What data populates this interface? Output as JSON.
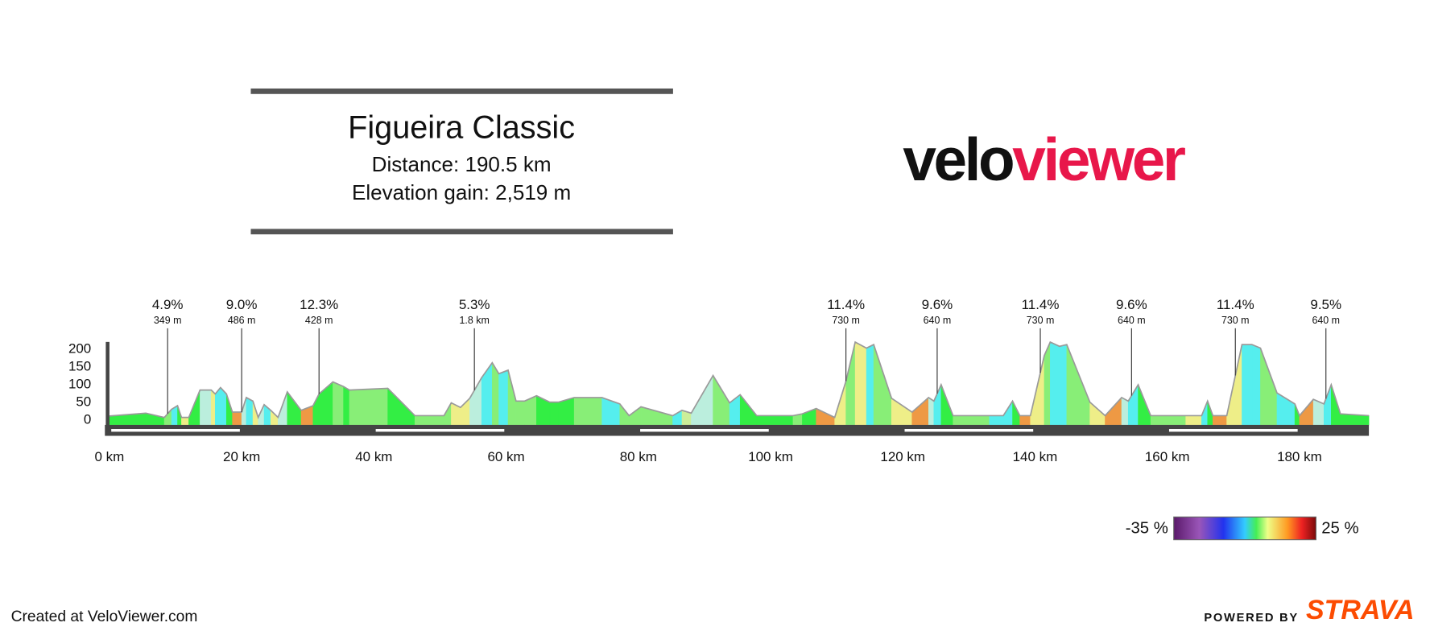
{
  "header": {
    "title": "Figueira Classic",
    "distance": "Distance: 190.5 km",
    "elevation_gain": "Elevation gain: 2,519 m"
  },
  "logo": {
    "part1": "velo",
    "part2": "viewer"
  },
  "chart_data": {
    "type": "area",
    "x": [
      0,
      5.5,
      8.3,
      9.4,
      10.3,
      10.9,
      12,
      13.7,
      15.4,
      16,
      16.8,
      17.7,
      18.6,
      20,
      20.7,
      21.7,
      22.5,
      23.4,
      24.4,
      25.5,
      26.9,
      29,
      30.8,
      31.7,
      33.8,
      35.4,
      36.3,
      42.1,
      46.2,
      50.6,
      51.7,
      53.1,
      54.5,
      56.3,
      57.9,
      58.9,
      60.3,
      61.5,
      62.8,
      64.6,
      66.6,
      67.9,
      70.3,
      74.5,
      77.2,
      78.6,
      80.4,
      85.2,
      86.6,
      88,
      91.3,
      93.8,
      95.4,
      97.9,
      103.4,
      104.8,
      106.9,
      109.7,
      111.4,
      112.8,
      114.5,
      115.6,
      118.3,
      121.4,
      123.9,
      124.7,
      125.8,
      127.6,
      133.1,
      135.2,
      136.6,
      137.7,
      139.3,
      141.4,
      142.3,
      143.7,
      144.8,
      148.3,
      150.6,
      153.1,
      154.1,
      155.6,
      157.5,
      162.8,
      165.2,
      166.1,
      166.9,
      169,
      171.3,
      172.8,
      174.1,
      176.6,
      179.3,
      180,
      182.1,
      183.7,
      184.8,
      186.2,
      190.5
    ],
    "values": [
      12,
      20,
      8,
      31,
      41,
      8,
      8,
      85,
      85,
      74,
      92,
      74,
      23,
      23,
      64,
      54,
      8,
      44,
      28,
      8,
      80,
      28,
      41,
      74,
      108,
      95,
      85,
      90,
      13,
      13,
      49,
      36,
      62,
      120,
      162,
      131,
      141,
      54,
      54,
      69,
      51,
      51,
      64,
      64,
      46,
      13,
      38,
      13,
      28,
      20,
      126,
      49,
      72,
      13,
      13,
      18,
      33,
      8,
      110,
      220,
      203,
      213,
      62,
      23,
      64,
      54,
      100,
      13,
      13,
      13,
      54,
      13,
      13,
      182,
      220,
      208,
      213,
      51,
      13,
      64,
      54,
      100,
      13,
      13,
      13,
      54,
      13,
      13,
      213,
      213,
      203,
      77,
      46,
      13,
      59,
      46,
      100,
      18,
      13
    ],
    "segment_colors": [
      "#33ee44",
      "#33ee44",
      "#88ee77",
      "#55eeee",
      "#33ee44",
      "#eeee88",
      "#33ee44",
      "#bbeedd",
      "#eeee88",
      "#55eeee",
      "#55eeee",
      "#33ee44",
      "#ee9944",
      "#bbeedd",
      "#55eeee",
      "#eeee88",
      "#bbeedd",
      "#55eeee",
      "#eeee88",
      "#bbeedd",
      "#33ee44",
      "#ee9944",
      "#33ee44",
      "#33ee44",
      "#88ee77",
      "#33ee44",
      "#88ee77",
      "#33ee44",
      "#88ee77",
      "#88ee77",
      "#eeee88",
      "#eeee88",
      "#bbeedd",
      "#55eeee",
      "#88ee77",
      "#55eeee",
      "#88ee77",
      "#88ee77",
      "#88ee77",
      "#33ee44",
      "#33ee44",
      "#33ee44",
      "#88ee77",
      "#55eeee",
      "#88ee77",
      "#88ee77",
      "#88ee77",
      "#55eeee",
      "#ccee99",
      "#bbeedd",
      "#88ee77",
      "#55eeee",
      "#33ee44",
      "#33ee44",
      "#88ee77",
      "#33ee44",
      "#ee9944",
      "#eeee88",
      "#88ee77",
      "#eeee88",
      "#55eeee",
      "#88ee77",
      "#eeee88",
      "#ee9944",
      "#bbeedd",
      "#55eeee",
      "#33ee44",
      "#88ee77",
      "#55eeee",
      "#55eeee",
      "#33ee44",
      "#ee9944",
      "#eeee88",
      "#88ee77",
      "#55eeee",
      "#55eeee",
      "#88ee77",
      "#eeee88",
      "#ee9944",
      "#bbeedd",
      "#55eeee",
      "#33ee44",
      "#88ee77",
      "#eeee88",
      "#55eeee",
      "#33ee44",
      "#ee9944",
      "#eeee88",
      "#55eeee",
      "#55eeee",
      "#88ee77",
      "#55eeee",
      "#33ee44",
      "#ee9944",
      "#bbeedd",
      "#55eeee",
      "#33ee44",
      "#33ee44"
    ],
    "outline_color": "#9a9a9a",
    "xlim": [
      0,
      190.5
    ],
    "ylim": [
      -13,
      225
    ],
    "yticks": [
      0,
      50,
      100,
      150,
      200
    ],
    "xticks": [
      {
        "value": 0,
        "label": "0 km"
      },
      {
        "value": 20,
        "label": "20 km"
      },
      {
        "value": 40,
        "label": "40 km"
      },
      {
        "value": 60,
        "label": "60 km"
      },
      {
        "value": 80,
        "label": "80 km"
      },
      {
        "value": 100,
        "label": "100 km"
      },
      {
        "value": 120,
        "label": "120 km"
      },
      {
        "value": 140,
        "label": "140 km"
      },
      {
        "value": 160,
        "label": "160 km"
      },
      {
        "value": 180,
        "label": "180 km"
      }
    ],
    "climbs": [
      {
        "x": 8.8,
        "grade": "4.9%",
        "length": "349 m"
      },
      {
        "x": 20,
        "grade": "9.0%",
        "length": "486 m"
      },
      {
        "x": 31.7,
        "grade": "12.3%",
        "length": "428 m"
      },
      {
        "x": 55.2,
        "grade": "5.3%",
        "length": "1.8 km"
      },
      {
        "x": 111.4,
        "grade": "11.4%",
        "length": "730 m"
      },
      {
        "x": 125.2,
        "grade": "9.6%",
        "length": "640 m"
      },
      {
        "x": 140.8,
        "grade": "11.4%",
        "length": "730 m"
      },
      {
        "x": 154.6,
        "grade": "9.6%",
        "length": "640 m"
      },
      {
        "x": 170.3,
        "grade": "11.4%",
        "length": "730 m"
      },
      {
        "x": 184,
        "grade": "9.5%",
        "length": "640 m"
      }
    ],
    "gradient_legend": {
      "min_label": "-35 %",
      "max_label": "25 %"
    }
  },
  "footer": {
    "created": "Created at VeloViewer.com",
    "powered_by": "POWERED BY",
    "brand": "STRAVA"
  }
}
